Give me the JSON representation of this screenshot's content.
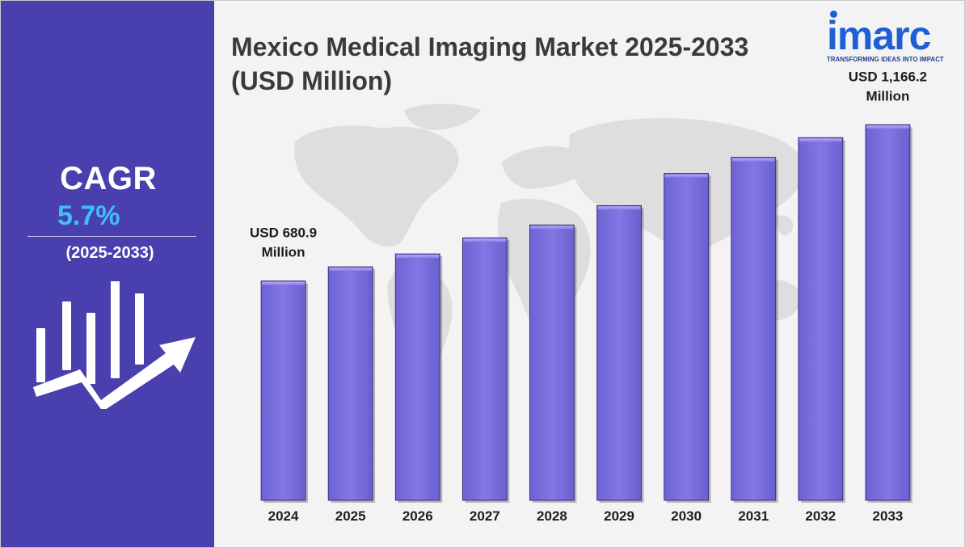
{
  "title": "Mexico Medical Imaging Market 2025-2033\n(USD Million)",
  "logo": {
    "name": "imarc",
    "tagline": "TRANSFORMING IDEAS INTO IMPACT"
  },
  "sidebar": {
    "cagr_label": "CAGR",
    "cagr_value": "5.7%",
    "cagr_period": "(2025-2033)",
    "icon": "growth-chart-arrow-icon"
  },
  "colors": {
    "sidebar": "#4a3fae",
    "bar": "#7a6fdc",
    "cagr_value": "#3fc0f5",
    "logo": "#1e5fd6"
  },
  "chart_data": {
    "type": "bar",
    "categories": [
      "2024",
      "2025",
      "2026",
      "2027",
      "2028",
      "2029",
      "2030",
      "2031",
      "2032",
      "2033"
    ],
    "values": [
      680.9,
      725,
      765,
      815,
      855,
      915,
      1015,
      1065,
      1126,
      1166.2
    ],
    "annotations": [
      {
        "category": "2024",
        "lines": [
          "USD 680.9",
          "Million"
        ]
      },
      {
        "category": "2033",
        "lines": [
          "USD 1,166.2",
          "Million"
        ]
      }
    ],
    "ylim": [
      0,
      1300
    ],
    "grid": false,
    "legend": "none",
    "background": "world map"
  }
}
